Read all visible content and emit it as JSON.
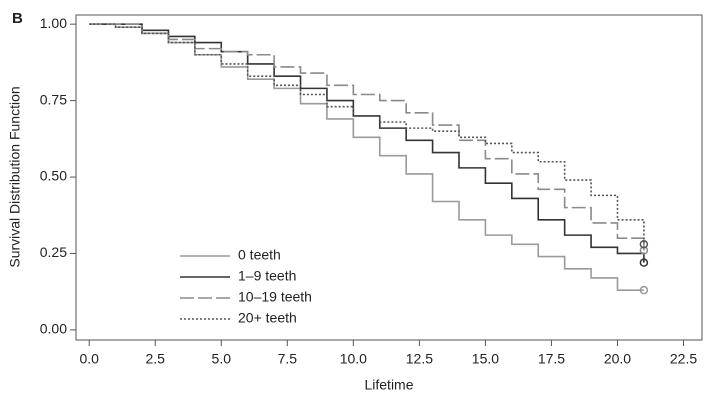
{
  "chart_data": {
    "type": "step",
    "panel_label": "B",
    "xlabel": "Lifetime",
    "ylabel": "Survival Distribution Function",
    "x": [
      0,
      1,
      2,
      3,
      4,
      5,
      6,
      7,
      8,
      9,
      10,
      11,
      12,
      13,
      14,
      15,
      16,
      17,
      18,
      19,
      20,
      21
    ],
    "series": [
      {
        "name": "0 teeth",
        "color": "#9a9a9a",
        "line_style": "solid",
        "values": [
          1.0,
          0.99,
          0.97,
          0.94,
          0.9,
          0.86,
          0.82,
          0.79,
          0.74,
          0.69,
          0.63,
          0.57,
          0.51,
          0.42,
          0.36,
          0.31,
          0.28,
          0.24,
          0.2,
          0.17,
          0.13,
          0.13
        ]
      },
      {
        "name": "1–9 teeth",
        "color": "#333333",
        "line_style": "solid",
        "values": [
          1.0,
          1.0,
          0.98,
          0.96,
          0.94,
          0.91,
          0.87,
          0.83,
          0.79,
          0.75,
          0.7,
          0.66,
          0.62,
          0.58,
          0.53,
          0.48,
          0.43,
          0.36,
          0.31,
          0.27,
          0.25,
          0.22
        ]
      },
      {
        "name": "10–19 teeth",
        "color": "#8a8a8a",
        "line_style": "dashed",
        "values": [
          1.0,
          1.0,
          0.97,
          0.95,
          0.92,
          0.91,
          0.9,
          0.86,
          0.84,
          0.8,
          0.77,
          0.75,
          0.71,
          0.67,
          0.62,
          0.56,
          0.51,
          0.46,
          0.4,
          0.35,
          0.3,
          0.26
        ]
      },
      {
        "name": "20+ teeth",
        "color": "#555555",
        "line_style": "dotted",
        "values": [
          1.0,
          0.99,
          0.97,
          0.94,
          0.9,
          0.87,
          0.83,
          0.8,
          0.77,
          0.73,
          0.7,
          0.68,
          0.66,
          0.65,
          0.63,
          0.61,
          0.58,
          0.55,
          0.49,
          0.44,
          0.36,
          0.28
        ]
      }
    ],
    "xlim": [
      -0.5,
      23.2
    ],
    "ylim": [
      -0.033,
      1.03
    ],
    "xticks": [
      {
        "value": 0,
        "label": "0.0"
      },
      2.5,
      {
        "value": 5,
        "label": "5.0"
      },
      7.5,
      {
        "value": 10,
        "label": "10.0"
      },
      12.5,
      {
        "value": 15,
        "label": "15.0"
      },
      17.5,
      {
        "value": 20,
        "label": "20.0"
      },
      22.5
    ],
    "yticks": [
      {
        "value": 0,
        "label": "0.00"
      },
      {
        "value": 0.25,
        "label": "0.25"
      },
      {
        "value": 0.5,
        "label": "0.50"
      },
      {
        "value": 0.75,
        "label": "0.75"
      },
      {
        "value": 1,
        "label": "1.00"
      }
    ],
    "legend": "lower left"
  }
}
